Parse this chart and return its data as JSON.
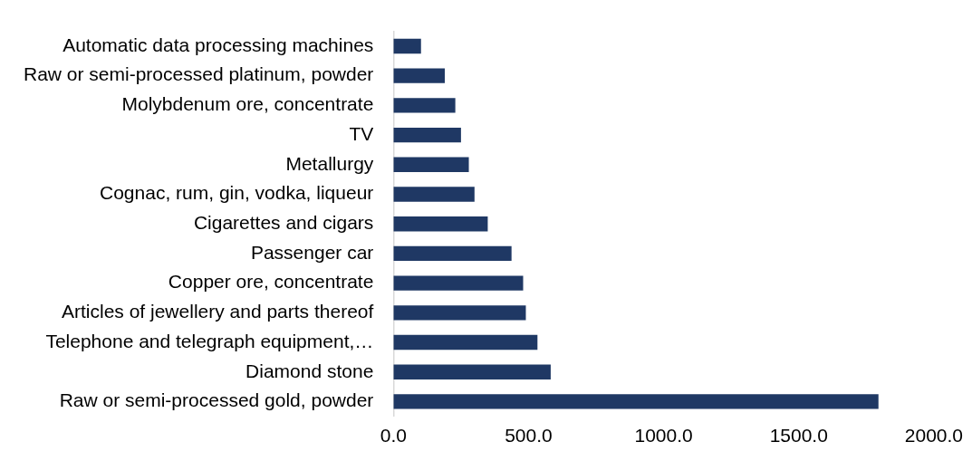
{
  "chart_data": {
    "type": "bar",
    "orientation": "horizontal",
    "categories": [
      "Automatic data processing machines",
      "Raw or semi-processed platinum, powder",
      "Molybdenum ore, concentrate",
      "TV",
      "Metallurgy",
      "Cognac, rum, gin, vodka, liqueur",
      "Cigarettes and cigars",
      "Passenger car",
      "Copper ore, concentrate",
      "Articles of jewellery and parts thereof",
      "Telephone and telegraph equipment,…",
      "Diamond stone",
      "Raw or semi-processed gold, powder"
    ],
    "values": [
      102,
      190,
      229,
      250,
      279,
      300,
      349,
      437,
      480,
      490,
      533,
      582,
      1795
    ],
    "color": "#1f3864",
    "xlim": [
      0,
      2000
    ],
    "xticks": [
      {
        "value": 0,
        "label": "0.0"
      },
      {
        "value": 500,
        "label": "500.0"
      },
      {
        "value": 1000,
        "label": "1000.0"
      },
      {
        "value": 1500,
        "label": "1500.0"
      },
      {
        "value": 2000,
        "label": "2000.0"
      }
    ],
    "grid": false,
    "legend": false
  }
}
